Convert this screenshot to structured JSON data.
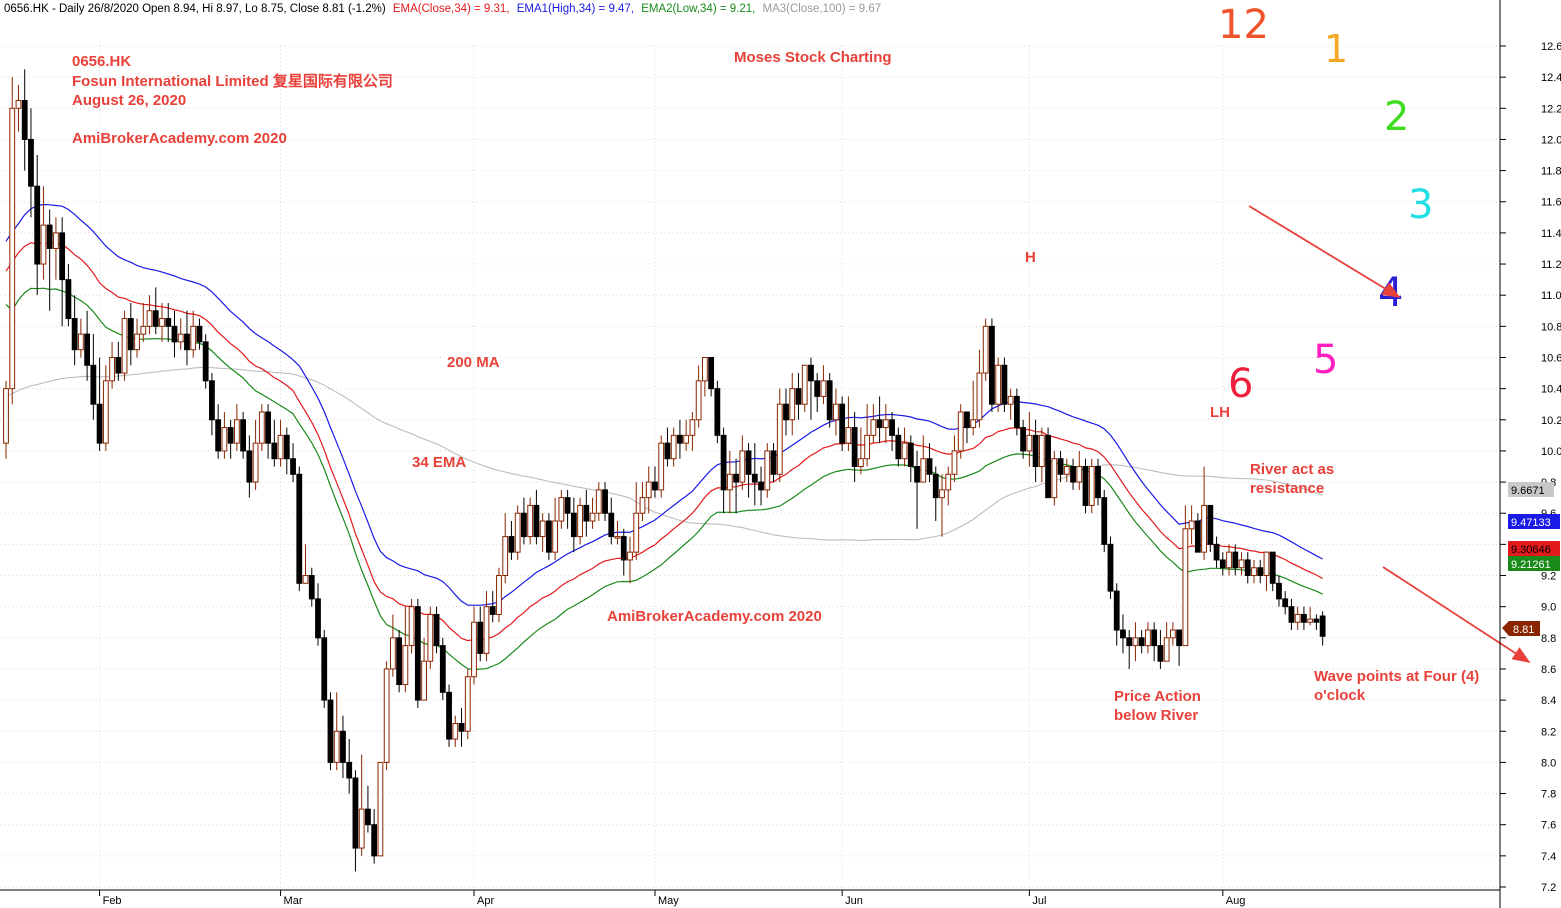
{
  "header": {
    "prefix": "0656.HK - Daily 26/8/2020 Open 8.94, Hi 8.97, Lo 8.75, Close 8.81 (-1.2%)",
    "ema_close": "EMA(Close,34) = 9.31,",
    "ema1_high": "EMA1(High,34) = 9.47,",
    "ema2_low": "EMA2(Low,34) = 9.21,",
    "ma3_close": "MA3(Close,100) = 9.67"
  },
  "annotations": {
    "ticker": "0656.HK",
    "company": "Fosun International Limited 复星国际有限公司",
    "date": "August 26, 2020",
    "site_top": "AmiBrokerAcademy.com 2020",
    "charting": "Moses Stock Charting",
    "ma200": "200 MA",
    "ema34": "34 EMA",
    "site_mid": "AmiBrokerAcademy.com  2020",
    "high": "H",
    "lower_high": "LH",
    "river_1": "River act as",
    "river_2": "resistance",
    "price_1": "Price Action",
    "price_2": "below River",
    "wave_1": "Wave points at Four (4)",
    "wave_2": "o'clock"
  },
  "clock_face": [
    {
      "label": "12",
      "color": "#f0532a"
    },
    {
      "label": "1",
      "color": "#f5a623"
    },
    {
      "label": "2",
      "color": "#3fdc1f"
    },
    {
      "label": "3",
      "color": "#22dfe6"
    },
    {
      "label": "4",
      "color": "#2b1fd6"
    },
    {
      "label": "5",
      "color": "#ff1fbf"
    },
    {
      "label": "6",
      "color": "#ee1f3d"
    }
  ],
  "value_tags": {
    "ma100": "9.6671",
    "ema1_high": "9.47133",
    "ema_close": "9.30646",
    "ema2_low": "9.21261",
    "close": "8.81"
  },
  "colors": {
    "ema_close": "#e31a1c",
    "ema1_high": "#1a1ae6",
    "ema2_low": "#1a8a1a",
    "ma100": "#bdbdbd",
    "up_candle": "#8b2500",
    "down_candle": "#000000",
    "annotation": "#e8413a",
    "arrow": "#e8413a"
  },
  "chart_data": {
    "type": "candlestick",
    "title": "0656.HK - Daily 26/8/2020",
    "y_ticks": [
      "7.2",
      "7.4",
      "7.6",
      "7.8",
      "8.0",
      "8.2",
      "8.4",
      "8.6",
      "8.8",
      "9.0",
      "9.2",
      "9.4",
      "9.6",
      "9.8",
      "10.0",
      "10.2",
      "10.4",
      "10.6",
      "10.8",
      "11.0",
      "11.2",
      "11.4",
      "11.6",
      "11.8",
      "12.0",
      "12.2",
      "12.4",
      "12.6"
    ],
    "ylim": [
      7.2,
      12.6
    ],
    "x_labels": [
      "Feb",
      "Mar",
      "Apr",
      "May",
      "Jun",
      "Jul",
      "Aug"
    ],
    "x_label_day_index": [
      15,
      44,
      75,
      104,
      134,
      164,
      195
    ],
    "grid": true,
    "candles": [
      [
        10.05,
        10.4,
        10.45,
        9.95
      ],
      [
        10.4,
        12.2,
        12.4,
        10.3
      ],
      [
        12.2,
        12.25,
        12.35,
        12.05
      ],
      [
        12.25,
        12.0,
        12.45,
        11.8
      ],
      [
        12.0,
        11.7,
        12.2,
        11.5
      ],
      [
        11.7,
        11.2,
        11.9,
        11.0
      ],
      [
        11.2,
        11.45,
        11.7,
        11.1
      ],
      [
        11.45,
        11.3,
        11.55,
        10.9
      ],
      [
        11.3,
        11.4,
        11.5,
        11.1
      ],
      [
        11.4,
        11.1,
        11.5,
        10.8
      ],
      [
        11.1,
        10.85,
        11.2,
        10.8
      ],
      [
        10.85,
        10.65,
        11.0,
        10.55
      ],
      [
        10.65,
        10.75,
        10.85,
        10.6
      ],
      [
        10.75,
        10.55,
        10.9,
        10.45
      ],
      [
        10.55,
        10.3,
        10.75,
        10.2
      ],
      [
        10.3,
        10.05,
        10.6,
        10.0
      ],
      [
        10.05,
        10.45,
        10.55,
        10.0
      ],
      [
        10.45,
        10.6,
        10.7,
        10.4
      ],
      [
        10.6,
        10.5,
        10.7,
        10.45
      ],
      [
        10.5,
        10.85,
        10.9,
        10.45
      ],
      [
        10.85,
        10.65,
        10.95,
        10.55
      ],
      [
        10.65,
        10.75,
        10.85,
        10.6
      ],
      [
        10.75,
        10.8,
        10.95,
        10.7
      ],
      [
        10.8,
        10.9,
        11.0,
        10.75
      ],
      [
        10.9,
        10.8,
        11.05,
        10.75
      ],
      [
        10.8,
        10.85,
        10.95,
        10.7
      ],
      [
        10.85,
        10.8,
        10.95,
        10.7
      ],
      [
        10.8,
        10.7,
        10.9,
        10.6
      ],
      [
        10.7,
        10.75,
        10.85,
        10.65
      ],
      [
        10.75,
        10.65,
        10.9,
        10.55
      ],
      [
        10.65,
        10.8,
        10.9,
        10.6
      ],
      [
        10.8,
        10.7,
        10.85,
        10.65
      ],
      [
        10.7,
        10.45,
        10.75,
        10.4
      ],
      [
        10.45,
        10.2,
        10.5,
        10.1
      ],
      [
        10.2,
        10.0,
        10.3,
        9.95
      ],
      [
        10.0,
        10.15,
        10.25,
        9.95
      ],
      [
        10.15,
        10.05,
        10.2,
        9.95
      ],
      [
        10.05,
        10.2,
        10.3,
        10.0
      ],
      [
        10.2,
        10.0,
        10.25,
        9.95
      ],
      [
        10.0,
        9.8,
        10.1,
        9.7
      ],
      [
        9.8,
        10.05,
        10.2,
        9.75
      ],
      [
        10.05,
        10.25,
        10.3,
        10.0
      ],
      [
        10.25,
        10.05,
        10.3,
        9.95
      ],
      [
        10.05,
        9.95,
        10.2,
        9.9
      ],
      [
        9.95,
        10.1,
        10.2,
        9.9
      ],
      [
        10.1,
        9.95,
        10.15,
        9.85
      ],
      [
        9.95,
        9.85,
        10.05,
        9.8
      ],
      [
        9.85,
        9.15,
        9.9,
        9.1
      ],
      [
        9.15,
        9.2,
        9.4,
        9.15
      ],
      [
        9.2,
        9.05,
        9.25,
        9.0
      ],
      [
        9.05,
        8.8,
        9.15,
        8.75
      ],
      [
        8.8,
        8.4,
        8.85,
        8.35
      ],
      [
        8.4,
        8.0,
        8.45,
        7.95
      ],
      [
        8.0,
        8.2,
        8.45,
        7.95
      ],
      [
        8.2,
        8.0,
        8.3,
        7.9
      ],
      [
        8.0,
        7.9,
        8.15,
        7.8
      ],
      [
        7.9,
        7.45,
        7.95,
        7.3
      ],
      [
        7.45,
        7.7,
        8.05,
        7.4
      ],
      [
        7.7,
        7.6,
        7.85,
        7.55
      ],
      [
        7.6,
        7.4,
        7.7,
        7.35
      ],
      [
        7.4,
        8.0,
        8.0,
        7.4
      ],
      [
        8.0,
        8.6,
        8.65,
        7.95
      ],
      [
        8.6,
        8.8,
        8.95,
        8.55
      ],
      [
        8.8,
        8.5,
        8.85,
        8.45
      ],
      [
        8.5,
        8.75,
        9.0,
        8.45
      ],
      [
        8.75,
        9.0,
        9.05,
        8.7
      ],
      [
        9.0,
        8.4,
        9.05,
        8.35
      ],
      [
        8.4,
        8.65,
        8.8,
        8.4
      ],
      [
        8.65,
        8.95,
        9.0,
        8.6
      ],
      [
        8.95,
        8.75,
        9.0,
        8.7
      ],
      [
        8.75,
        8.45,
        8.8,
        8.4
      ],
      [
        8.45,
        8.15,
        8.5,
        8.1
      ],
      [
        8.15,
        8.25,
        8.3,
        8.1
      ],
      [
        8.25,
        8.2,
        8.35,
        8.1
      ],
      [
        8.2,
        8.55,
        8.6,
        8.15
      ],
      [
        8.55,
        8.9,
        9.0,
        8.5
      ],
      [
        8.9,
        8.7,
        9.0,
        8.65
      ],
      [
        8.7,
        9.0,
        9.1,
        8.65
      ],
      [
        9.0,
        8.95,
        9.1,
        8.9
      ],
      [
        8.95,
        9.2,
        9.25,
        8.9
      ],
      [
        9.2,
        9.45,
        9.6,
        9.15
      ],
      [
        9.45,
        9.35,
        9.55,
        9.3
      ],
      [
        9.35,
        9.6,
        9.65,
        9.3
      ],
      [
        9.6,
        9.45,
        9.7,
        9.4
      ],
      [
        9.45,
        9.65,
        9.7,
        9.4
      ],
      [
        9.65,
        9.45,
        9.75,
        9.4
      ],
      [
        9.45,
        9.55,
        9.6,
        9.35
      ],
      [
        9.55,
        9.35,
        9.6,
        9.3
      ],
      [
        9.35,
        9.55,
        9.7,
        9.3
      ],
      [
        9.55,
        9.7,
        9.75,
        9.5
      ],
      [
        9.7,
        9.6,
        9.75,
        9.5
      ],
      [
        9.6,
        9.45,
        9.7,
        9.35
      ],
      [
        9.45,
        9.65,
        9.7,
        9.4
      ],
      [
        9.65,
        9.55,
        9.75,
        9.45
      ],
      [
        9.55,
        9.6,
        9.7,
        9.5
      ],
      [
        9.6,
        9.75,
        9.8,
        9.55
      ],
      [
        9.75,
        9.6,
        9.8,
        9.55
      ],
      [
        9.6,
        9.45,
        9.7,
        9.4
      ],
      [
        9.45,
        9.45,
        9.55,
        9.4
      ],
      [
        9.45,
        9.3,
        9.5,
        9.2
      ],
      [
        9.3,
        9.35,
        9.45,
        9.15
      ],
      [
        9.35,
        9.6,
        9.8,
        9.3
      ],
      [
        9.6,
        9.7,
        9.8,
        9.55
      ],
      [
        9.7,
        9.8,
        9.9,
        9.6
      ],
      [
        9.8,
        9.75,
        9.9,
        9.7
      ],
      [
        9.75,
        10.05,
        10.1,
        9.7
      ],
      [
        10.05,
        9.95,
        10.15,
        9.9
      ],
      [
        9.95,
        10.1,
        10.15,
        9.9
      ],
      [
        10.1,
        10.05,
        10.2,
        9.95
      ],
      [
        10.05,
        10.1,
        10.2,
        10.0
      ],
      [
        10.1,
        10.2,
        10.25,
        10.0
      ],
      [
        10.2,
        10.45,
        10.55,
        10.15
      ],
      [
        10.45,
        10.6,
        10.6,
        10.35
      ],
      [
        10.6,
        10.4,
        10.6,
        10.35
      ],
      [
        10.4,
        10.1,
        10.45,
        10.05
      ],
      [
        10.1,
        9.75,
        10.15,
        9.6
      ],
      [
        9.75,
        9.85,
        10.0,
        9.6
      ],
      [
        9.85,
        9.8,
        9.95,
        9.6
      ],
      [
        9.8,
        10.0,
        10.1,
        9.75
      ],
      [
        10.0,
        9.85,
        10.05,
        9.7
      ],
      [
        9.85,
        9.8,
        10.05,
        9.65
      ],
      [
        9.8,
        9.75,
        9.9,
        9.65
      ],
      [
        9.75,
        10.0,
        10.05,
        9.7
      ],
      [
        10.0,
        9.85,
        10.05,
        9.8
      ],
      [
        9.85,
        10.3,
        10.4,
        9.8
      ],
      [
        10.3,
        10.2,
        10.4,
        10.1
      ],
      [
        10.2,
        10.4,
        10.5,
        10.1
      ],
      [
        10.4,
        10.3,
        10.5,
        10.2
      ],
      [
        10.3,
        10.55,
        10.55,
        10.25
      ],
      [
        10.55,
        10.45,
        10.6,
        10.2
      ],
      [
        10.45,
        10.35,
        10.5,
        10.25
      ],
      [
        10.35,
        10.45,
        10.55,
        10.3
      ],
      [
        10.45,
        10.2,
        10.5,
        10.15
      ],
      [
        10.2,
        10.3,
        10.4,
        10.1
      ],
      [
        10.3,
        10.05,
        10.35,
        10.0
      ],
      [
        10.05,
        10.15,
        10.35,
        10.0
      ],
      [
        10.15,
        9.9,
        10.25,
        9.8
      ],
      [
        9.9,
        9.95,
        10.15,
        9.85
      ],
      [
        9.95,
        10.1,
        10.3,
        9.9
      ],
      [
        10.1,
        10.2,
        10.3,
        10.05
      ],
      [
        10.2,
        10.15,
        10.35,
        10.05
      ],
      [
        10.15,
        10.2,
        10.3,
        10.05
      ],
      [
        10.2,
        10.1,
        10.25,
        10.0
      ],
      [
        10.1,
        9.95,
        10.15,
        9.9
      ],
      [
        9.95,
        10.05,
        10.15,
        9.9
      ],
      [
        10.05,
        9.9,
        10.1,
        9.8
      ],
      [
        9.9,
        9.8,
        10.0,
        9.5
      ],
      [
        9.8,
        9.95,
        10.1,
        9.8
      ],
      [
        9.95,
        9.85,
        10.05,
        9.8
      ],
      [
        9.85,
        9.7,
        9.9,
        9.55
      ],
      [
        9.7,
        9.75,
        9.85,
        9.45
      ],
      [
        9.75,
        9.85,
        9.9,
        9.65
      ],
      [
        9.85,
        10.0,
        10.1,
        9.8
      ],
      [
        10.0,
        10.25,
        10.3,
        9.95
      ],
      [
        10.25,
        10.15,
        10.25,
        10.05
      ],
      [
        10.15,
        10.2,
        10.45,
        10.1
      ],
      [
        10.2,
        10.5,
        10.65,
        10.15
      ],
      [
        10.5,
        10.8,
        10.85,
        10.45
      ],
      [
        10.8,
        10.3,
        10.85,
        10.25
      ],
      [
        10.3,
        10.55,
        10.6,
        10.25
      ],
      [
        10.55,
        10.3,
        10.6,
        10.25
      ],
      [
        10.3,
        10.35,
        10.4,
        10.2
      ],
      [
        10.35,
        10.15,
        10.4,
        10.1
      ],
      [
        10.15,
        10.0,
        10.2,
        9.95
      ],
      [
        10.0,
        10.1,
        10.25,
        9.9
      ],
      [
        10.1,
        9.9,
        10.2,
        9.8
      ],
      [
        9.9,
        10.1,
        10.15,
        9.8
      ],
      [
        10.1,
        9.7,
        10.15,
        9.7
      ],
      [
        9.7,
        9.95,
        10.0,
        9.65
      ],
      [
        9.95,
        9.85,
        10.0,
        9.8
      ],
      [
        9.85,
        9.9,
        9.95,
        9.8
      ],
      [
        9.9,
        9.8,
        9.95,
        9.75
      ],
      [
        9.8,
        9.9,
        10.0,
        9.75
      ],
      [
        9.9,
        9.65,
        9.95,
        9.6
      ],
      [
        9.65,
        9.9,
        9.95,
        9.6
      ],
      [
        9.9,
        9.7,
        9.95,
        9.65
      ],
      [
        9.7,
        9.4,
        9.75,
        9.35
      ],
      [
        9.4,
        9.1,
        9.45,
        9.05
      ],
      [
        9.1,
        8.85,
        9.15,
        8.75
      ],
      [
        8.85,
        8.8,
        8.95,
        8.7
      ],
      [
        8.8,
        8.75,
        8.85,
        8.6
      ],
      [
        8.75,
        8.8,
        8.9,
        8.65
      ],
      [
        8.8,
        8.75,
        8.85,
        8.7
      ],
      [
        8.75,
        8.85,
        8.9,
        8.7
      ],
      [
        8.85,
        8.75,
        8.9,
        8.65
      ],
      [
        8.75,
        8.65,
        8.85,
        8.6
      ],
      [
        8.65,
        8.8,
        8.9,
        8.65
      ],
      [
        8.8,
        8.85,
        8.9,
        8.75
      ],
      [
        8.85,
        8.75,
        8.85,
        8.62
      ],
      [
        8.75,
        9.5,
        9.65,
        8.75
      ],
      [
        9.5,
        9.55,
        9.65,
        9.4
      ],
      [
        9.55,
        9.35,
        9.6,
        9.35
      ],
      [
        9.35,
        9.65,
        9.9,
        9.3
      ],
      [
        9.65,
        9.4,
        9.65,
        9.35
      ],
      [
        9.4,
        9.3,
        9.45,
        9.25
      ],
      [
        9.3,
        9.25,
        9.35,
        9.2
      ],
      [
        9.25,
        9.35,
        9.4,
        9.2
      ],
      [
        9.35,
        9.25,
        9.4,
        9.2
      ],
      [
        9.25,
        9.3,
        9.35,
        9.2
      ],
      [
        9.3,
        9.2,
        9.35,
        9.15
      ],
      [
        9.2,
        9.25,
        9.3,
        9.15
      ],
      [
        9.25,
        9.2,
        9.3,
        9.15
      ],
      [
        9.2,
        9.35,
        9.35,
        9.1
      ],
      [
        9.35,
        9.15,
        9.35,
        9.1
      ],
      [
        9.15,
        9.05,
        9.2,
        9.0
      ],
      [
        9.05,
        9.0,
        9.1,
        8.95
      ],
      [
        9.0,
        8.9,
        9.05,
        8.85
      ],
      [
        8.9,
        8.95,
        9.0,
        8.85
      ],
      [
        8.95,
        8.9,
        9.0,
        8.85
      ],
      [
        8.9,
        8.92,
        9.0,
        8.88
      ],
      [
        8.92,
        8.9,
        8.95,
        8.85
      ],
      [
        8.94,
        8.81,
        8.97,
        8.75
      ]
    ],
    "ema_close_34_end": 9.31,
    "ema1_high_34_end": 9.47,
    "ema2_low_34_end": 9.21,
    "ma3_close_100_end": 9.67
  }
}
